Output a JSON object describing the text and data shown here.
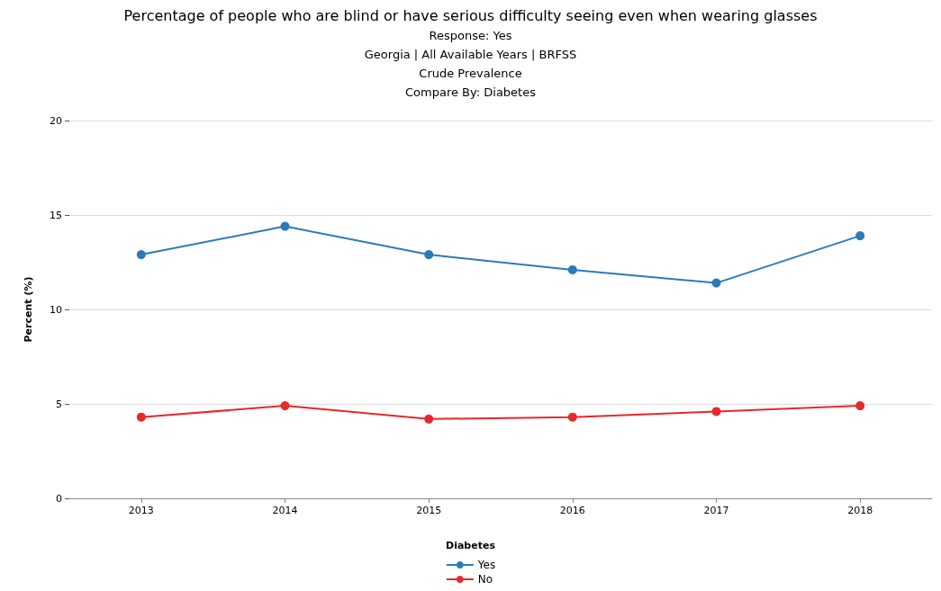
{
  "chart_data": {
    "type": "line",
    "title": "Percentage of people who are blind or have serious difficulty seeing even when wearing glasses",
    "subtitle": "Response: Yes\nGeorgia | All Available Years | BRFSS\nCrude Prevalence\nCompare By: Diabetes",
    "ylabel": "Percent (%)",
    "legend_title": "Diabetes",
    "categories": [
      "2013",
      "2014",
      "2015",
      "2016",
      "2017",
      "2018"
    ],
    "series": [
      {
        "name": "Yes",
        "color": "#2b7bba",
        "values": [
          12.9,
          14.4,
          12.9,
          12.1,
          11.4,
          13.9
        ]
      },
      {
        "name": "No",
        "color": "#e8282b",
        "values": [
          4.3,
          4.9,
          4.2,
          4.3,
          4.6,
          4.9
        ]
      }
    ],
    "ylim": [
      0,
      20
    ],
    "yticks": [
      0,
      5,
      10,
      15,
      20
    ],
    "grid": "y",
    "legend": "bottom",
    "marker": "circle",
    "line_style": "solid"
  }
}
